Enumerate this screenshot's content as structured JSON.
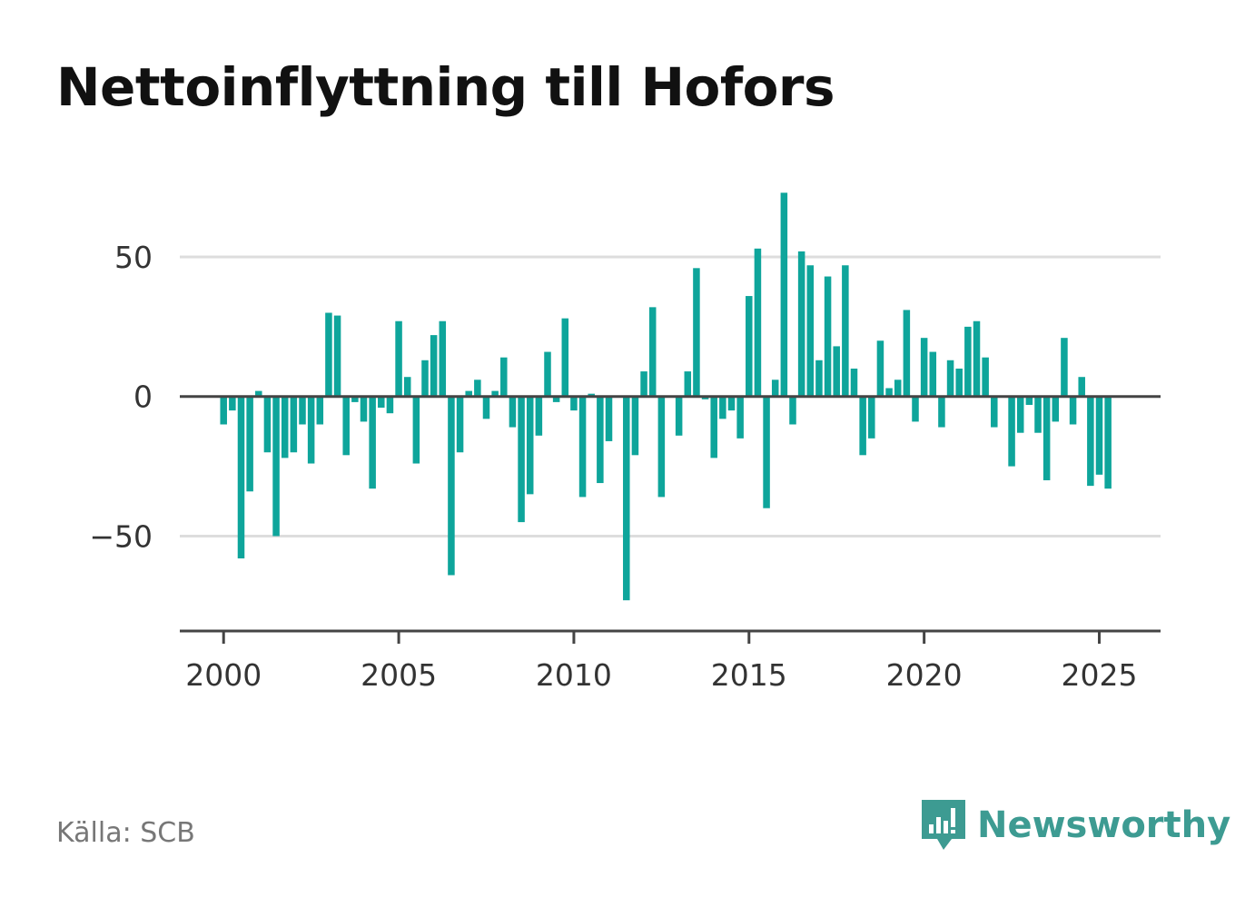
{
  "title": "Nettoinflyttning till Hofors",
  "source": "Källa: SCB",
  "brand": {
    "name": "Newsworthy",
    "icon": "bar-chart-speech-bubble-icon",
    "color": "#3d9b92"
  },
  "colors": {
    "bar": "#0ea59b",
    "grid": "#dddddd",
    "axis": "#444444"
  },
  "chart_data": {
    "type": "bar",
    "title": "Nettoinflyttning till Hofors",
    "xlabel": "",
    "ylabel": "",
    "x_start": 2000.0,
    "x_step": 0.25,
    "xlim": [
      1998.75,
      2026.75
    ],
    "ylim": [
      -84,
      77
    ],
    "xticks": [
      2000,
      2005,
      2010,
      2015,
      2020,
      2025
    ],
    "xtick_labels": [
      "2000",
      "2005",
      "2010",
      "2015",
      "2020",
      "2025"
    ],
    "yticks": [
      -50,
      0,
      50
    ],
    "ytick_labels": [
      "−50",
      "0",
      "50"
    ],
    "grid": "horizontal",
    "series": [
      {
        "values": [
          -10,
          -5,
          -58,
          -34,
          2,
          -20,
          -50,
          -22,
          -20,
          -10,
          -24,
          -10,
          30,
          29,
          -21,
          -2,
          -9,
          -33,
          -4,
          -6,
          27,
          7,
          -24,
          13,
          22,
          27,
          -64,
          -20,
          2,
          6,
          -8,
          2,
          14,
          -11,
          -45,
          -35,
          -14,
          16,
          -2,
          28,
          -5,
          -36,
          1,
          -31,
          -16,
          0,
          -73,
          -21,
          9,
          32,
          -36,
          0,
          -14,
          9,
          46,
          -1,
          -22,
          -8,
          -5,
          -15,
          36,
          53,
          -40,
          6,
          73,
          -10,
          52,
          47,
          13,
          43,
          18,
          47,
          10,
          -21,
          -15,
          20,
          3,
          6,
          31,
          -9,
          21,
          16,
          -11,
          13,
          10,
          25,
          27,
          14,
          -11,
          0,
          -25,
          -13,
          -3,
          -13,
          -30,
          -9,
          21,
          -10,
          7,
          -32,
          -28,
          -33
        ]
      }
    ]
  }
}
